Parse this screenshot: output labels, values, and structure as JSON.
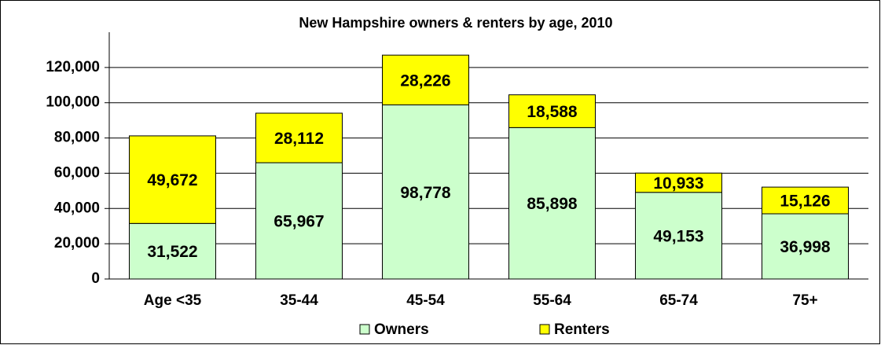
{
  "chart_data": {
    "type": "stacked_bar",
    "title": "New Hampshire owners & renters by age, 2010",
    "categories": [
      "Age <35",
      "35-44",
      "45-54",
      "55-64",
      "65-74",
      "75+"
    ],
    "series": [
      {
        "name": "Owners",
        "color": "#ccffcc",
        "values": [
          31522,
          65967,
          98778,
          85898,
          49153,
          36998
        ],
        "value_labels": [
          "31,522",
          "65,967",
          "98,778",
          "85,898",
          "49,153",
          "36,998"
        ]
      },
      {
        "name": "Renters",
        "color": "#ffff00",
        "values": [
          49672,
          28112,
          28226,
          18588,
          10933,
          15126
        ],
        "value_labels": [
          "49,672",
          "28,112",
          "28,226",
          "18,588",
          "10,933",
          "15,126"
        ]
      }
    ],
    "ylim": [
      0,
      140000
    ],
    "yticks": [
      0,
      {
        "value": 20000,
        "label": "20,000"
      },
      {
        "value": 40000,
        "label": "40,000"
      },
      {
        "value": 60000,
        "label": "60,000"
      },
      {
        "value": 80000,
        "label": "80,000"
      },
      {
        "value": 100000,
        "label": "100,000"
      },
      {
        "value": 120000,
        "label": "120,000"
      }
    ],
    "grid": true,
    "legend": "bottom"
  }
}
